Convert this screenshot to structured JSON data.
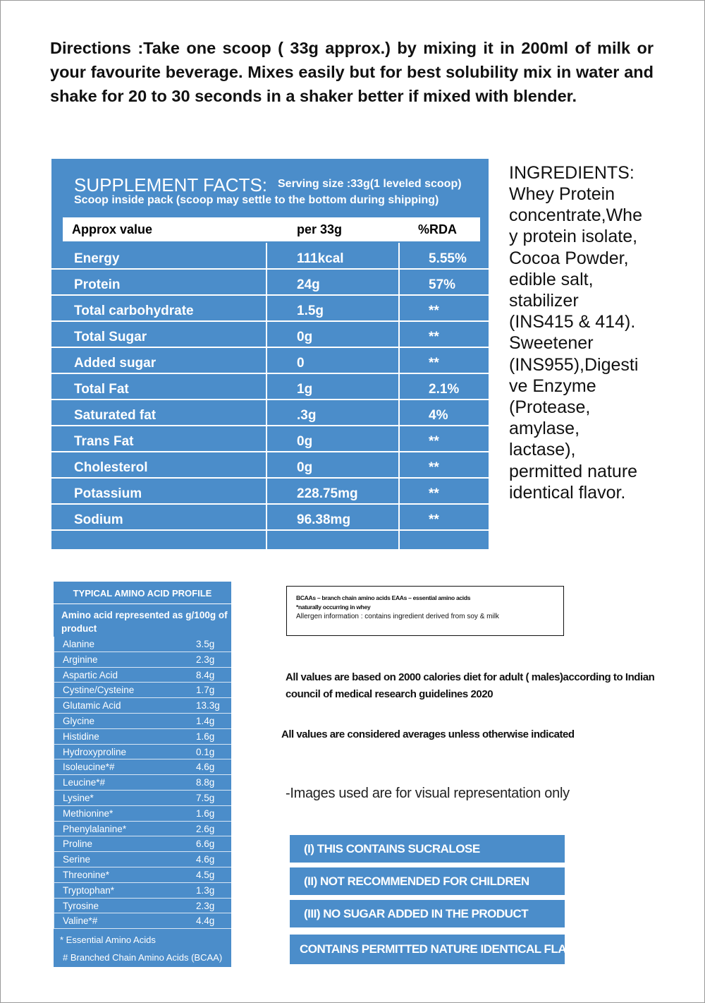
{
  "directions": "Directions :Take one scoop ( 33g approx.) by mixing it in 200ml of milk or your favourite beverage. Mixes easily but for best solubility mix in water and shake for 20 to 30 seconds in a shaker better if mixed with blender.",
  "supplement_facts": {
    "title": "SUPPLEMENT FACTS:",
    "serving_size": "Serving size :33g(1 leveled scoop)",
    "scoop_note": "Scoop inside pack (scoop may settle to the bottom during shipping)",
    "header": [
      "Approx value",
      "per 33g",
      "%RDA"
    ],
    "rows": [
      [
        "Energy",
        "111kcal",
        "5.55%"
      ],
      [
        "Protein",
        "24g",
        "57%"
      ],
      [
        "Total carbohydrate",
        "1.5g",
        "**"
      ],
      [
        "Total Sugar",
        "0g",
        "**"
      ],
      [
        "Added sugar",
        "0",
        "**"
      ],
      [
        "Total Fat",
        "1g",
        "2.1%"
      ],
      [
        "Saturated fat",
        ".3g",
        "4%"
      ],
      [
        "Trans Fat",
        "0g",
        "**"
      ],
      [
        "Cholesterol",
        "0g",
        "**"
      ],
      [
        "Potassium",
        "228.75mg",
        "**"
      ],
      [
        "Sodium",
        "96.38mg",
        "**"
      ]
    ]
  },
  "ingredients": {
    "title": "INGREDIENTS:",
    "lines": [
      "Whey Protein",
      "concentrate,Whe",
      "y protein isolate,",
      "Cocoa Powder,",
      "edible salt,",
      "stabilizer",
      "(INS415 & 414).",
      "Sweetener",
      "(INS955),Digesti",
      "ve Enzyme",
      "(Protease,",
      "amylase,",
      "lactase),",
      "permitted nature",
      "identical flavor."
    ]
  },
  "amino_acid_profile": {
    "title": "TYPICAL AMINO ACID PROFILE",
    "subtitle": "Amino acid represented as g/100g of product",
    "rows": [
      [
        "Alanine",
        "3.5g"
      ],
      [
        "Arginine",
        "2.3g"
      ],
      [
        "Aspartic Acid",
        "8.4g"
      ],
      [
        "Cystine/Cysteine",
        "1.7g"
      ],
      [
        "Glutamic Acid",
        "13.3g"
      ],
      [
        "Glycine",
        "1.4g"
      ],
      [
        "Histidine",
        "1.6g"
      ],
      [
        "Hydroxyproline",
        "0.1g"
      ],
      [
        "Isoleucine*#",
        "4.6g"
      ],
      [
        "Leucine*#",
        "8.8g"
      ],
      [
        "Lysine*",
        "7.5g"
      ],
      [
        "Methionine*",
        "1.6g"
      ],
      [
        "Phenylalanine*",
        "2.6g"
      ],
      [
        "Proline",
        "6.6g"
      ],
      [
        "Serine",
        "4.6g"
      ],
      [
        "Threonine*",
        "4.5g"
      ],
      [
        "Tryptophan*",
        "1.3g"
      ],
      [
        "Tyrosine",
        "2.3g"
      ],
      [
        "Valine*#",
        "4.4g"
      ]
    ],
    "footnotes": [
      "* Essential Amino Acids",
      "# Branched Chain Amino Acids (BCAA)"
    ]
  },
  "notes": [
    "BCAAs – branch chain amino acids EAAs – essential amino acids",
    "*naturally occurring in whey",
    "Allergen information : contains ingredient derived from soy & milk"
  ],
  "statements": [
    "All values are based on 2000 calories diet for adult ( males)according to Indian council of medical research guidelines 2020",
    "All values are considered averages unless otherwise indicated",
    "-Images used are for visual representation only"
  ],
  "warnings": [
    "(I) THIS CONTAINS SUCRALOSE",
    "(II) NOT RECOMMENDED FOR CHILDREN",
    "(III) NO SUGAR ADDED IN THE PRODUCT",
    "CONTAINS PERMITTED NATURE IDENTICAL FLAVOR"
  ]
}
